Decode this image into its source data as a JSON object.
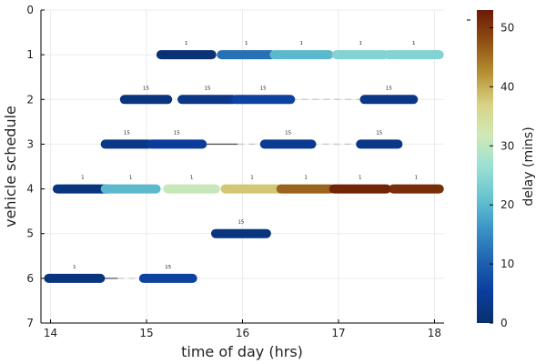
{
  "chart_data": {
    "type": "timeline",
    "xlabel": "time of day (hrs)",
    "ylabel": "vehicle schedule",
    "xlim": [
      13.9,
      18.1
    ],
    "ylim": [
      0,
      7
    ],
    "y_inverted": true,
    "xticks": [
      14,
      15,
      16,
      17,
      18
    ],
    "yticks": [
      0,
      1,
      2,
      3,
      4,
      5,
      6,
      7
    ],
    "grid": true,
    "colorbar": {
      "label": "delay (mins)",
      "range": [
        0,
        53
      ],
      "ticks": [
        0,
        10,
        20,
        30,
        40,
        50
      ],
      "colormap": [
        "#08306b",
        "#0b3d9e",
        "#1f63b0",
        "#3a93c6",
        "#66c4cf",
        "#9be0d3",
        "#cfe9b6",
        "#d8d283",
        "#b58f33",
        "#8f4f12",
        "#6b1a05"
      ]
    },
    "trips": [
      {
        "vehicle": 1,
        "start": 15.15,
        "end": 15.68,
        "delay": 1,
        "label": "1"
      },
      {
        "vehicle": 1,
        "start": 15.78,
        "end": 16.3,
        "delay": 12,
        "label": "1"
      },
      {
        "vehicle": 1,
        "start": 16.33,
        "end": 16.9,
        "delay": 20,
        "label": "1"
      },
      {
        "vehicle": 1,
        "start": 16.98,
        "end": 17.48,
        "delay": 24,
        "label": "1"
      },
      {
        "vehicle": 1,
        "start": 17.52,
        "end": 18.05,
        "delay": 24,
        "label": "1"
      },
      {
        "vehicle": 2,
        "start": 14.77,
        "end": 15.22,
        "delay": 2,
        "label": "15"
      },
      {
        "vehicle": 2,
        "start": 15.37,
        "end": 15.9,
        "delay": 3,
        "label": "15"
      },
      {
        "vehicle": 2,
        "start": 15.93,
        "end": 16.5,
        "delay": 6,
        "label": "15"
      },
      {
        "vehicle": 2,
        "start": 17.27,
        "end": 17.78,
        "delay": 3,
        "label": "15"
      },
      {
        "vehicle": 3,
        "start": 14.57,
        "end": 15.02,
        "delay": 3,
        "label": "15"
      },
      {
        "vehicle": 3,
        "start": 15.05,
        "end": 15.58,
        "delay": 5,
        "label": "15"
      },
      {
        "vehicle": 3,
        "start": 16.23,
        "end": 16.72,
        "delay": 4,
        "label": "15"
      },
      {
        "vehicle": 3,
        "start": 17.23,
        "end": 17.62,
        "delay": 3,
        "label": "15"
      },
      {
        "vehicle": 4,
        "start": 14.07,
        "end": 14.6,
        "delay": 2,
        "label": "1"
      },
      {
        "vehicle": 4,
        "start": 14.57,
        "end": 15.1,
        "delay": 20,
        "label": "1"
      },
      {
        "vehicle": 4,
        "start": 15.22,
        "end": 15.72,
        "delay": 31,
        "label": "1"
      },
      {
        "vehicle": 4,
        "start": 15.82,
        "end": 16.38,
        "delay": 38,
        "label": "1"
      },
      {
        "vehicle": 4,
        "start": 16.4,
        "end": 16.92,
        "delay": 46,
        "label": "1"
      },
      {
        "vehicle": 4,
        "start": 16.95,
        "end": 17.5,
        "delay": 52,
        "label": "1"
      },
      {
        "vehicle": 4,
        "start": 17.57,
        "end": 18.05,
        "delay": 51,
        "label": "1"
      },
      {
        "vehicle": 5,
        "start": 15.72,
        "end": 16.25,
        "delay": 2,
        "label": "15"
      },
      {
        "vehicle": 6,
        "start": 13.98,
        "end": 14.52,
        "delay": 2,
        "label": "1"
      },
      {
        "vehicle": 6,
        "start": 14.97,
        "end": 15.48,
        "delay": 6,
        "label": "15"
      }
    ],
    "connectors": [
      {
        "vehicle": 2,
        "start": 16.5,
        "end": 17.27,
        "style": "dashed"
      },
      {
        "vehicle": 3,
        "start": 15.58,
        "end": 15.95,
        "style": "solid"
      },
      {
        "vehicle": 3,
        "start": 15.95,
        "end": 16.23,
        "style": "dashed"
      },
      {
        "vehicle": 3,
        "start": 16.72,
        "end": 17.23,
        "style": "dashed"
      },
      {
        "vehicle": 6,
        "start": 14.52,
        "end": 14.7,
        "style": "solid"
      },
      {
        "vehicle": 6,
        "start": 14.7,
        "end": 14.97,
        "style": "dashed"
      }
    ]
  }
}
